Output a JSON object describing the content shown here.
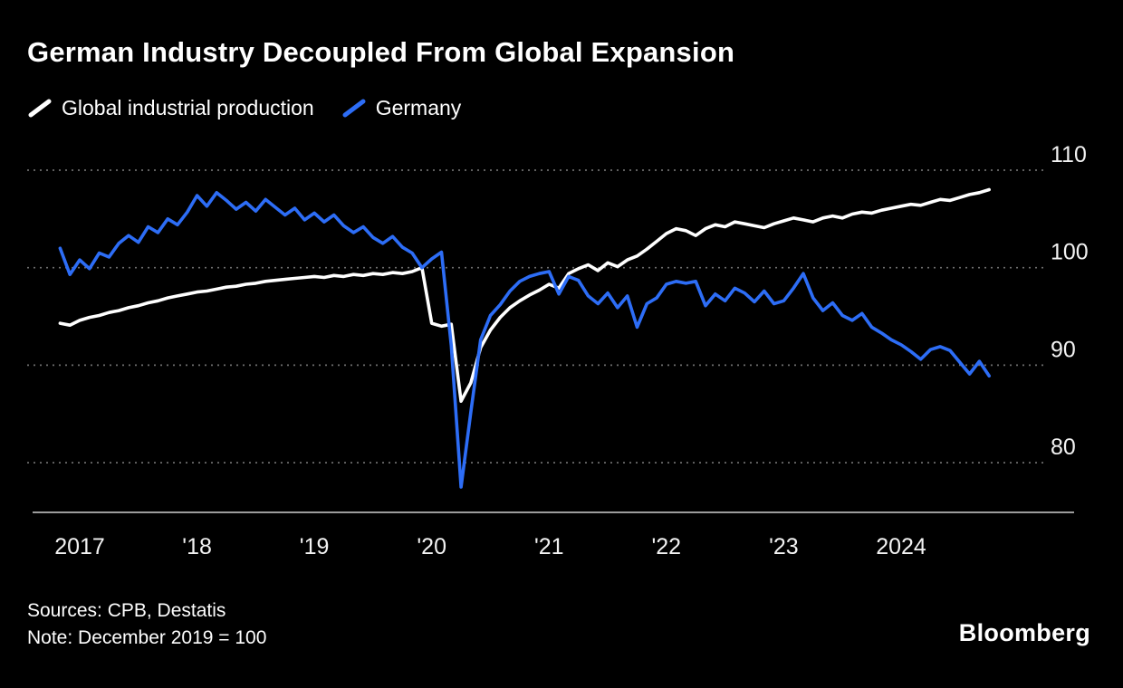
{
  "title": "German Industry Decoupled From Global Expansion",
  "legend": [
    {
      "label": "Global industrial production",
      "color": "#ffffff"
    },
    {
      "label": "Germany",
      "color": "#2d6df6"
    }
  ],
  "footer": {
    "sources": "Sources: CPB, Destatis",
    "note": "Note: December 2019 = 100",
    "brand": "Bloomberg"
  },
  "colors": {
    "background": "#000000",
    "grid": "#6e6e6e",
    "axis": "#9c9c9c",
    "tick_text": "#f2f2f2",
    "global_series": "#ffffff",
    "germany_series": "#2d6df6"
  },
  "chart_data": {
    "type": "line",
    "title": "German Industry Decoupled From Global Expansion",
    "note": "December 2019 = 100",
    "frequency": "monthly",
    "x_start": "2016-11",
    "x_end": "2024-10",
    "x_tick_labels": [
      "2017",
      "'18",
      "'19",
      "'20",
      "'21",
      "'22",
      "'23",
      "2024"
    ],
    "y_ticks": [
      110,
      100,
      90,
      80
    ],
    "ylim": [
      74,
      113
    ],
    "grid": "horizontal-dotted",
    "legend_position": "top-left",
    "series": [
      {
        "name": "Global industrial production",
        "color": "#ffffff",
        "values": [
          94.3,
          94.1,
          94.6,
          94.9,
          95.1,
          95.4,
          95.6,
          95.9,
          96.1,
          96.4,
          96.6,
          96.9,
          97.1,
          97.3,
          97.5,
          97.6,
          97.8,
          98.0,
          98.1,
          98.3,
          98.4,
          98.6,
          98.7,
          98.8,
          98.9,
          99.0,
          99.1,
          99.0,
          99.2,
          99.1,
          99.3,
          99.2,
          99.4,
          99.3,
          99.5,
          99.4,
          99.6,
          100.0,
          94.3,
          94.0,
          94.2,
          86.3,
          88.2,
          91.8,
          93.6,
          94.9,
          95.9,
          96.6,
          97.2,
          97.7,
          98.3,
          97.9,
          99.4,
          99.9,
          100.3,
          99.7,
          100.5,
          100.1,
          100.8,
          101.2,
          101.9,
          102.7,
          103.5,
          104.0,
          103.8,
          103.3,
          104.0,
          104.4,
          104.2,
          104.7,
          104.5,
          104.3,
          104.1,
          104.5,
          104.8,
          105.1,
          104.9,
          104.7,
          105.1,
          105.3,
          105.1,
          105.5,
          105.7,
          105.6,
          105.9,
          106.1,
          106.3,
          106.5,
          106.4,
          106.7,
          107.0,
          106.9,
          107.2,
          107.5,
          107.7,
          108.0
        ]
      },
      {
        "name": "Germany",
        "color": "#2d6df6",
        "values": [
          102.0,
          99.3,
          100.8,
          99.9,
          101.5,
          101.1,
          102.5,
          103.3,
          102.6,
          104.2,
          103.6,
          105.0,
          104.4,
          105.7,
          107.4,
          106.3,
          107.7,
          106.9,
          106.0,
          106.7,
          105.8,
          107.0,
          106.2,
          105.4,
          106.1,
          104.9,
          105.6,
          104.7,
          105.4,
          104.3,
          103.6,
          104.2,
          103.1,
          102.5,
          103.2,
          102.1,
          101.5,
          100.0,
          100.9,
          101.6,
          92.0,
          77.5,
          85.2,
          92.6,
          95.1,
          96.2,
          97.6,
          98.6,
          99.1,
          99.4,
          99.6,
          97.3,
          99.1,
          98.7,
          97.1,
          96.3,
          97.4,
          95.9,
          97.1,
          93.9,
          96.3,
          96.9,
          98.3,
          98.6,
          98.4,
          98.6,
          96.1,
          97.3,
          96.6,
          97.9,
          97.4,
          96.5,
          97.6,
          96.3,
          96.6,
          97.9,
          99.4,
          96.9,
          95.6,
          96.4,
          95.1,
          94.6,
          95.3,
          93.9,
          93.3,
          92.6,
          92.1,
          91.4,
          90.6,
          91.6,
          91.9,
          91.5,
          90.3,
          89.1,
          90.4,
          88.9
        ]
      }
    ]
  }
}
